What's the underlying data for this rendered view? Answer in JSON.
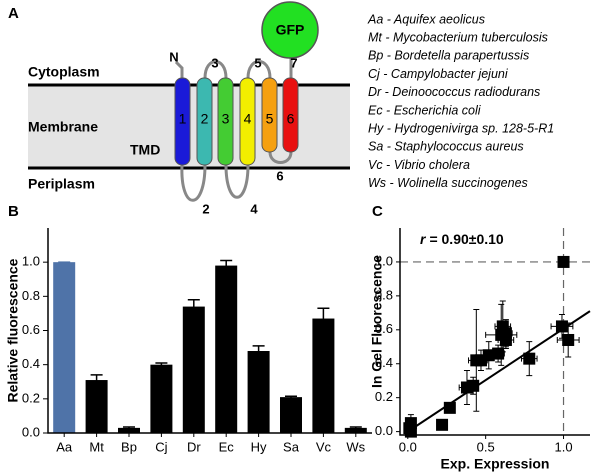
{
  "panel_labels": [
    "A",
    "B",
    "C"
  ],
  "diagram": {
    "regions": [
      "Cytoplasm",
      "Membrane",
      "Periplasm"
    ],
    "tmd": "TMD",
    "terminus": "N",
    "gfp": "GFP",
    "helices": [
      "1",
      "2",
      "3",
      "4",
      "5",
      "6"
    ],
    "loops": [
      "2",
      "3",
      "4",
      "5",
      "6",
      "7"
    ]
  },
  "species": [
    "Aa - Aquifex aeolicus",
    "Mt - Mycobacterium tuberculosis",
    "Bp - Bordetella parapertussis",
    "Cj - Campylobacter jejuni",
    "Dr - Deinoococcus radiodurans",
    "Ec - Escherichia coli",
    "Hy - Hydrogenivirga sp. 128-5-R1",
    "Sa - Staphylococcus aureus",
    "Vc - Vibrio cholera",
    "Ws - Wolinella succinogenes"
  ],
  "chart_data": [
    {
      "type": "bar",
      "ylabel": "Relative fluorescence",
      "categories": [
        "Aa",
        "Mt",
        "Bp",
        "Cj",
        "Dr",
        "Ec",
        "Hy",
        "Sa",
        "Vc",
        "Ws"
      ],
      "values": [
        1.0,
        0.31,
        0.03,
        0.4,
        0.74,
        0.98,
        0.48,
        0.21,
        0.67,
        0.03
      ],
      "errors": [
        0,
        0.03,
        0.005,
        0.01,
        0.04,
        0.03,
        0.03,
        0.005,
        0.06,
        0.005
      ],
      "colors": [
        "#4f73a8",
        "#000000",
        "#000000",
        "#000000",
        "#000000",
        "#000000",
        "#000000",
        "#000000",
        "#000000",
        "#000000"
      ],
      "ylim": [
        0,
        1.2
      ],
      "yticks": [
        {
          "value": 0,
          "label": "0.0"
        },
        0.2,
        0.4,
        0.6,
        0.8,
        {
          "value": 1,
          "label": "1.0"
        }
      ]
    },
    {
      "type": "scatter",
      "xlabel": "Exp. Expression",
      "ylabel": "In Gel Fluorescence",
      "annotation": {
        "symbol": "r",
        "text": "= 0.90±0.10"
      },
      "x": [
        0.02,
        0.01,
        0.02,
        0.22,
        0.27,
        0.38,
        0.42,
        0.44,
        0.47,
        0.52,
        0.58,
        0.6,
        0.61,
        0.63,
        0.63,
        0.78,
        0.99,
        1.0,
        1.03
      ],
      "y": [
        0.05,
        0.02,
        0.0,
        0.04,
        0.14,
        0.26,
        0.27,
        0.42,
        0.42,
        0.45,
        0.46,
        0.57,
        0.62,
        0.54,
        0.58,
        0.43,
        0.62,
        1.0,
        0.54
      ],
      "xerr": [
        0.03,
        0.02,
        0.02,
        0.02,
        0.03,
        0.05,
        0.03,
        0.05,
        0.04,
        0.03,
        0.04,
        0.1,
        0.05,
        0.05,
        0.04,
        0.05,
        0.07,
        0.02,
        0.07
      ],
      "yerr": [
        0.05,
        0.03,
        0.02,
        0.02,
        0.03,
        0.1,
        0.05,
        0.3,
        0.06,
        0.08,
        0.05,
        0.18,
        0.15,
        0.05,
        0.08,
        0.1,
        0.07,
        0.02,
        0.1
      ],
      "fit": {
        "x": [
          0,
          1.17
        ],
        "y": [
          0,
          0.71
        ]
      },
      "reference_lines": {
        "x": 1,
        "y": 1
      },
      "color": "#000000",
      "xlim": [
        -0.05,
        1.17
      ],
      "ylim": [
        -0.02,
        1.2
      ],
      "xticks": [
        {
          "value": 0,
          "label": "0.0"
        },
        0.5,
        {
          "value": 1,
          "label": "1.0"
        }
      ],
      "yticks": [
        {
          "value": 0,
          "label": "0.0"
        },
        0.2,
        0.4,
        0.6,
        0.8,
        {
          "value": 1,
          "label": "1.0"
        }
      ]
    }
  ]
}
